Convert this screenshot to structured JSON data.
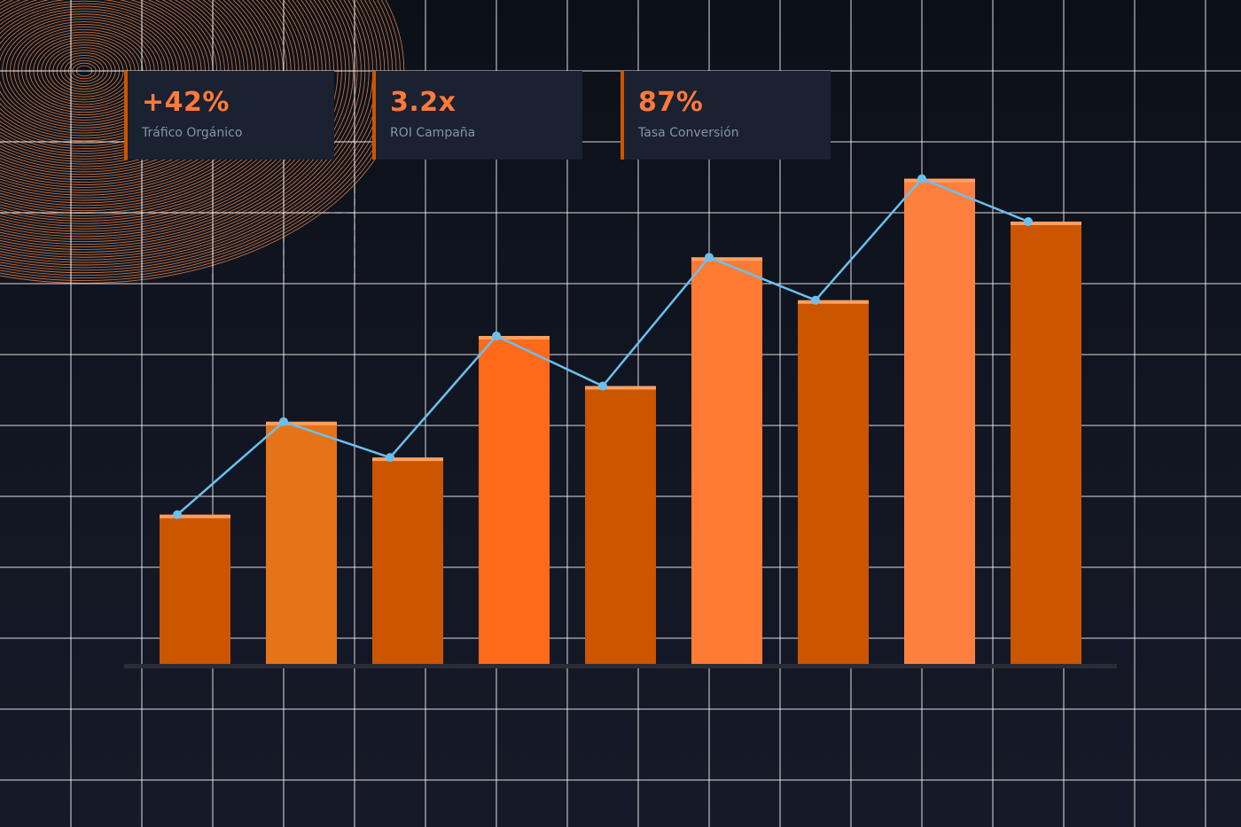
{
  "kpis": [
    {
      "value": "+42%",
      "label": "Tráfico Orgánico"
    },
    {
      "value": "3.2x",
      "label": "ROI Campaña"
    },
    {
      "value": "87%",
      "label": "Tasa Conversión"
    }
  ],
  "colors": {
    "background": "#0f1420",
    "grid": "#ffffff",
    "bar_palette": [
      "#cc5500",
      "#e67317",
      "#cc5500",
      "#ff6a1a",
      "#cc5500",
      "#ff7a33",
      "#cc5500",
      "#ff7f3f",
      "#cc5500"
    ],
    "bar_cap": "#ffa060",
    "line": "#6ac0ef",
    "accent": "#ff7a3a",
    "baseline": "#2a2d35",
    "decor_rings": "#e0824a"
  },
  "chart_data": {
    "type": "bar",
    "categories": [
      "",
      "",
      "",
      "",
      "",
      "",
      "",
      "",
      ""
    ],
    "values": [
      21,
      34,
      29,
      46,
      39,
      57,
      51,
      68,
      62
    ],
    "line_values": [
      21,
      34,
      29,
      46,
      39,
      57,
      51,
      68,
      62
    ],
    "ylim": [
      0,
      93
    ],
    "title": "",
    "xlabel": "",
    "ylabel": "",
    "grid": true,
    "legend": "none"
  }
}
